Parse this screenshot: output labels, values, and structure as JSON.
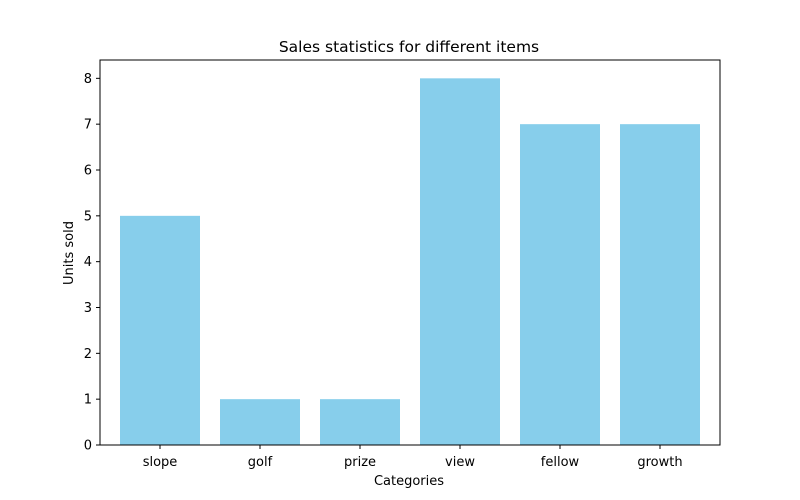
{
  "chart_data": {
    "type": "bar",
    "title": "Sales statistics for different items",
    "xlabel": "Categories",
    "ylabel": "Units sold",
    "categories": [
      "slope",
      "golf",
      "prize",
      "view",
      "fellow",
      "growth"
    ],
    "values": [
      5,
      1,
      1,
      8,
      7,
      7
    ],
    "ylim": [
      0,
      8.4
    ],
    "yticks": [
      0,
      1,
      2,
      3,
      4,
      5,
      6,
      7,
      8
    ],
    "bar_color": "#87ceeb",
    "grid": false,
    "legend": "none"
  }
}
